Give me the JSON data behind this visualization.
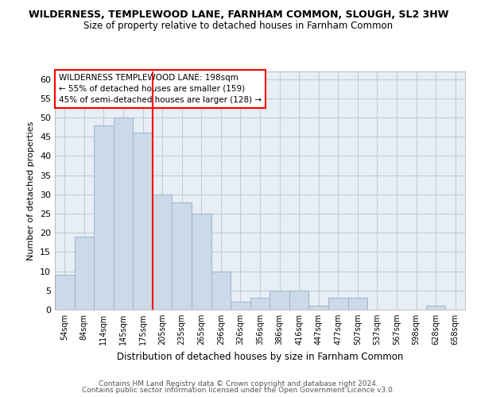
{
  "title_line1": "WILDERNESS, TEMPLEWOOD LANE, FARNHAM COMMON, SLOUGH, SL2 3HW",
  "title_line2": "Size of property relative to detached houses in Farnham Common",
  "xlabel": "Distribution of detached houses by size in Farnham Common",
  "ylabel": "Number of detached properties",
  "categories": [
    "54sqm",
    "84sqm",
    "114sqm",
    "145sqm",
    "175sqm",
    "205sqm",
    "235sqm",
    "265sqm",
    "296sqm",
    "326sqm",
    "356sqm",
    "386sqm",
    "416sqm",
    "447sqm",
    "477sqm",
    "507sqm",
    "537sqm",
    "567sqm",
    "598sqm",
    "628sqm",
    "658sqm"
  ],
  "values": [
    9,
    19,
    48,
    50,
    46,
    30,
    28,
    25,
    10,
    2,
    3,
    5,
    5,
    1,
    3,
    3,
    0,
    0,
    0,
    1,
    0
  ],
  "bar_color": "#ccd9e8",
  "bar_edge_color": "#9ab5cc",
  "ylim": [
    0,
    62
  ],
  "yticks": [
    0,
    5,
    10,
    15,
    20,
    25,
    30,
    35,
    40,
    45,
    50,
    55,
    60
  ],
  "red_line_x": 5.0,
  "annotation_line1": "WILDERNESS TEMPLEWOOD LANE: 198sqm",
  "annotation_line2": "← 55% of detached houses are smaller (159)",
  "annotation_line3": "45% of semi-detached houses are larger (128) →",
  "footer_line1": "Contains HM Land Registry data © Crown copyright and database right 2024.",
  "footer_line2": "Contains public sector information licensed under the Open Government Licence v3.0.",
  "fig_background": "#ffffff",
  "plot_background": "#e8eef5",
  "grid_color": "#c0cdd8"
}
